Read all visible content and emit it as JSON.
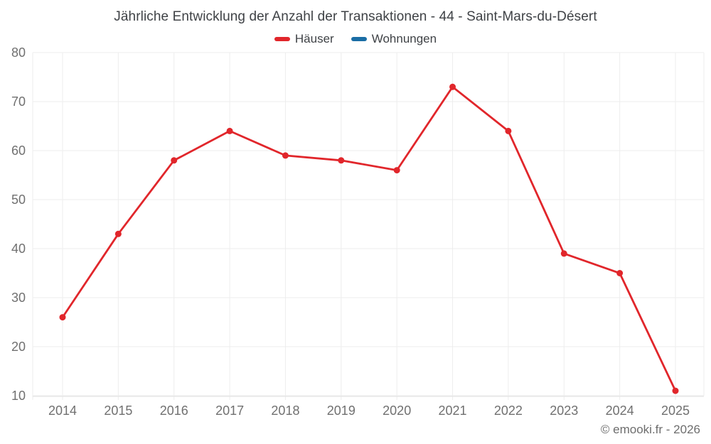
{
  "header": {
    "title": "Jährliche Entwicklung der Anzahl der Transaktionen - 44 - Saint-Mars-du-Désert"
  },
  "legend": {
    "items": [
      {
        "label": "Häuser",
        "color": "#e1262b"
      },
      {
        "label": "Wohnungen",
        "color": "#1a6da5"
      }
    ]
  },
  "footer": {
    "copyright": "© emooki.fr - 2026"
  },
  "chart_data": {
    "type": "line",
    "title": "Jährliche Entwicklung der Anzahl der Transaktionen - 44 - Saint-Mars-du-Désert",
    "x": [
      2014,
      2015,
      2016,
      2017,
      2018,
      2019,
      2020,
      2021,
      2022,
      2023,
      2024,
      2025
    ],
    "series": [
      {
        "name": "Häuser",
        "color": "#e1262b",
        "values": [
          26,
          43,
          58,
          64,
          59,
          58,
          56,
          73,
          64,
          39,
          35,
          11
        ]
      },
      {
        "name": "Wohnungen",
        "color": "#1a6da5",
        "values": []
      }
    ],
    "xlabel": "",
    "ylabel": "",
    "ylim": [
      10,
      80
    ],
    "y_ticks": [
      10,
      20,
      30,
      40,
      50,
      60,
      70,
      80
    ],
    "grid": true,
    "legend_position": "top",
    "colors": {
      "background": "#ffffff",
      "grid": "#ededed",
      "axis": "#e2e2e2",
      "tick_label": "#707070",
      "title_text": "#3f4246",
      "copyright_text": "#6d6d6d"
    }
  }
}
